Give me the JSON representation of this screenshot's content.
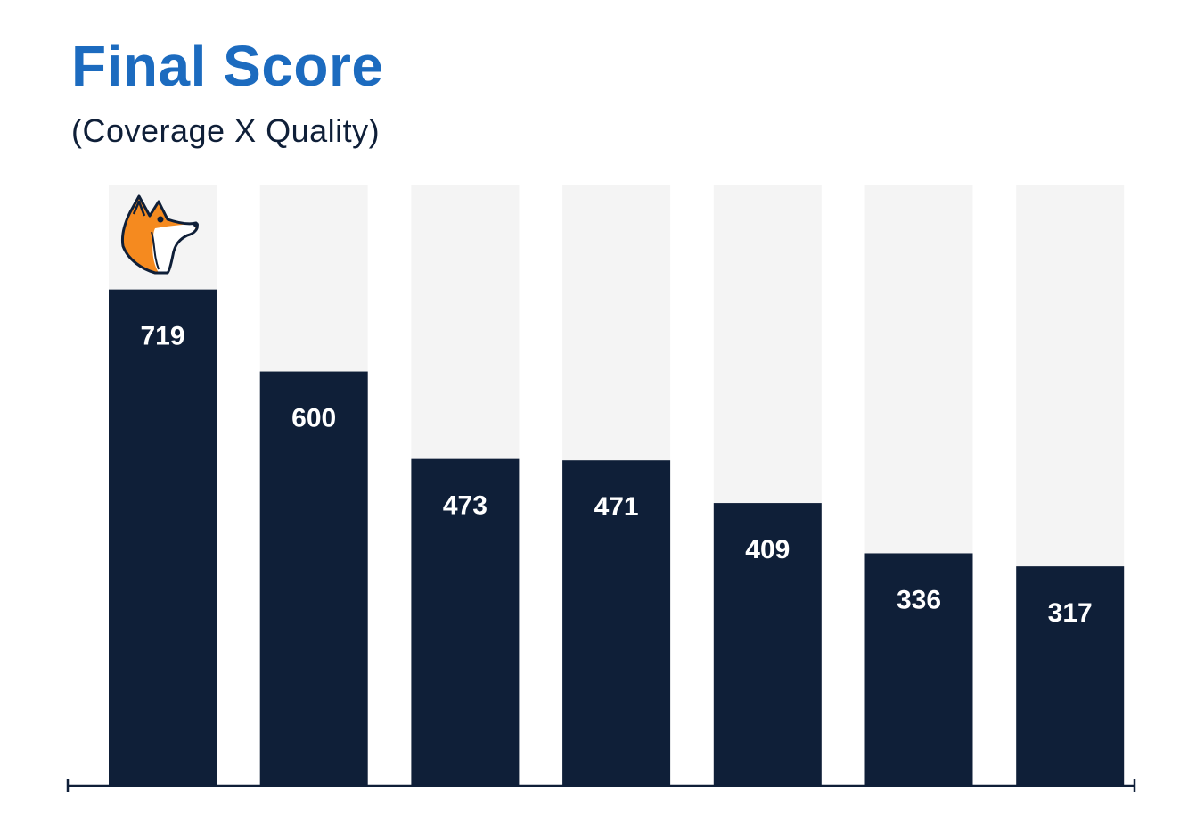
{
  "chart_data": {
    "type": "bar",
    "title": "Final Score",
    "subtitle": "(Coverage X Quality)",
    "categories": [
      "",
      "",
      "",
      "",
      "",
      "",
      ""
    ],
    "values": [
      719,
      600,
      473,
      471,
      409,
      336,
      317
    ],
    "data_labels": [
      "719",
      "600",
      "473",
      "471",
      "409",
      "336",
      "317"
    ],
    "ylim": [
      0,
      870
    ],
    "grid": false,
    "legend": "none",
    "first_bar_icon": "fox-mascot-icon",
    "colors": {
      "title": "#1c6bbf",
      "subtitle": "#0f1f38",
      "bar": "#0f1f38",
      "bar_background": "#f4f4f4",
      "label": "#ffffff",
      "axis": "#0f1f38",
      "fox_orange": "#f58a1f"
    }
  }
}
